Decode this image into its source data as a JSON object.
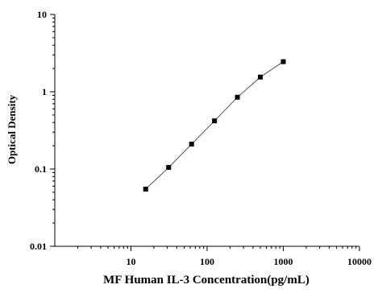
{
  "chart_data": {
    "type": "scatter",
    "title": "",
    "xlabel": "MF Human IL-3 Concentration(pg/mL)",
    "ylabel": "Optical Density",
    "xscale": "log",
    "yscale": "log",
    "xlim": [
      1,
      10000
    ],
    "ylim": [
      0.01,
      10
    ],
    "x_ticks": [
      {
        "value": 10,
        "label": "10"
      },
      {
        "value": 100,
        "label": "100"
      },
      {
        "value": 1000,
        "label": "1000"
      },
      {
        "value": 10000,
        "label": "10000"
      }
    ],
    "y_ticks": [
      {
        "value": 0.01,
        "label": "0.01"
      },
      {
        "value": 0.1,
        "label": "0.1"
      },
      {
        "value": 1,
        "label": "1"
      },
      {
        "value": 10,
        "label": "10"
      }
    ],
    "grid": false,
    "legend": "none",
    "marker": "square",
    "fit_line": true,
    "colors": {
      "points": "#000000",
      "fit_line": "#555555",
      "axes": "#000000"
    },
    "series": [
      {
        "x": [
          15.6,
          31.25,
          62.5,
          125,
          250,
          500,
          1000
        ],
        "y": [
          0.055,
          0.105,
          0.21,
          0.42,
          0.85,
          1.55,
          2.45
        ]
      }
    ]
  }
}
